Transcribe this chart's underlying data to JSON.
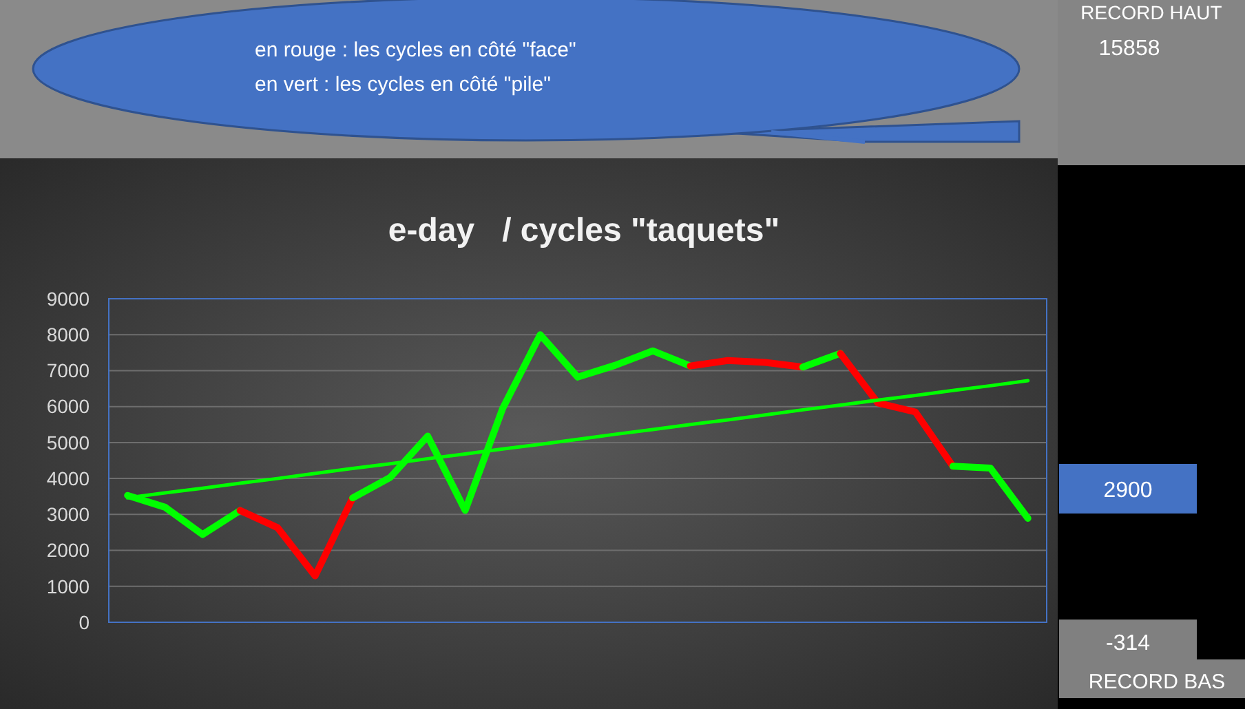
{
  "chart_data": {
    "type": "line",
    "title": "e-day   / cycles \"taquets\"",
    "categories": [
      null,
      null,
      null,
      null,
      null,
      null,
      null,
      null,
      null,
      null,
      null,
      null,
      null,
      null,
      null,
      null,
      null,
      null,
      null,
      null,
      null,
      null,
      null,
      null,
      null
    ],
    "ylim": [
      0,
      9000
    ],
    "yticks": [
      0,
      1000,
      2000,
      3000,
      4000,
      5000,
      6000,
      7000,
      8000,
      9000
    ],
    "grid": "y",
    "tick_labels": "y",
    "marker": "none",
    "line_style": "solid",
    "series": [
      {
        "color": "#00ff00",
        "values": [
          3530,
          3200,
          2440,
          3110,
          null,
          null,
          null,
          null,
          null,
          null,
          null,
          null,
          null,
          null,
          null,
          null,
          null,
          null,
          null,
          null,
          null,
          null,
          null,
          null,
          null
        ]
      },
      {
        "color": "#ff0000",
        "values": [
          null,
          null,
          null,
          3110,
          2630,
          1290,
          3460,
          null,
          null,
          null,
          null,
          null,
          null,
          null,
          null,
          null,
          null,
          null,
          null,
          null,
          null,
          null,
          null,
          null,
          null
        ]
      },
      {
        "color": "#00ff00",
        "values": [
          null,
          null,
          null,
          null,
          null,
          null,
          3460,
          4030,
          5180,
          3110,
          5950,
          8000,
          6820,
          7150,
          7550,
          7130,
          null,
          null,
          null,
          null,
          null,
          null,
          null,
          null,
          null
        ]
      },
      {
        "color": "#ff0000",
        "values": [
          null,
          null,
          null,
          null,
          null,
          null,
          null,
          null,
          null,
          null,
          null,
          null,
          null,
          null,
          null,
          7130,
          7280,
          7230,
          7100,
          null,
          null,
          null,
          null,
          null,
          null
        ]
      },
      {
        "color": "#00ff00",
        "values": [
          null,
          null,
          null,
          null,
          null,
          null,
          null,
          null,
          null,
          null,
          null,
          null,
          null,
          null,
          null,
          null,
          null,
          null,
          7100,
          7480,
          null,
          null,
          null,
          null,
          null
        ]
      },
      {
        "color": "#ff0000",
        "values": [
          null,
          null,
          null,
          null,
          null,
          null,
          null,
          null,
          null,
          null,
          null,
          null,
          null,
          null,
          null,
          null,
          null,
          null,
          null,
          7480,
          6100,
          5850,
          4340,
          null,
          null
        ]
      },
      {
        "color": "#00ff00",
        "values": [
          null,
          null,
          null,
          null,
          null,
          null,
          null,
          null,
          null,
          null,
          null,
          null,
          null,
          null,
          null,
          null,
          null,
          null,
          null,
          null,
          null,
          null,
          4340,
          4290,
          2890
        ]
      },
      {
        "type": "line",
        "color": "#00ff00",
        "values": [
          3460,
          3600,
          3730,
          3870,
          4000,
          4140,
          4280,
          4410,
          4550,
          4680,
          4820,
          4950,
          5090,
          5230,
          5360,
          5500,
          5630,
          5770,
          5910,
          6040,
          6180,
          6310,
          6450,
          6580,
          6720
        ]
      }
    ],
    "annotations": [
      "en rouge : les cycles en côté \"face\"",
      "en vert : les cycles en côté \"pile\"",
      "RECORD HAUT",
      "15858",
      "2900",
      "-314",
      "RECORD BAS"
    ]
  }
}
